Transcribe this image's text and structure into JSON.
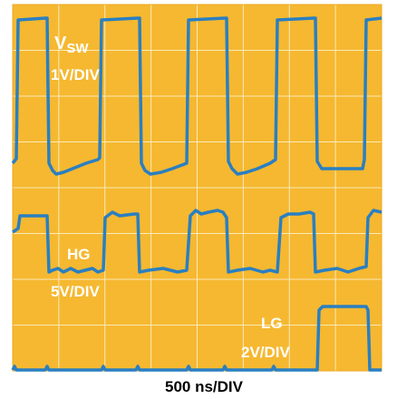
{
  "chart_data": {
    "type": "line",
    "title": "",
    "xlabel": "500 ns/DIV",
    "grid": true,
    "colors": {
      "background": "#f5b830",
      "grid": "#fbe9b8",
      "trace": "#2a7fc1",
      "text": "#ffffff"
    },
    "divisions": {
      "x": 8,
      "y": 8
    },
    "channels": [
      {
        "name_main": "V",
        "name_sub": "SW",
        "scale": "1V/DIV"
      },
      {
        "name_main": "HG",
        "name_sub": "",
        "scale": "5V/DIV"
      },
      {
        "name_main": "LG",
        "name_sub": "",
        "scale": "2V/DIV"
      }
    ]
  }
}
